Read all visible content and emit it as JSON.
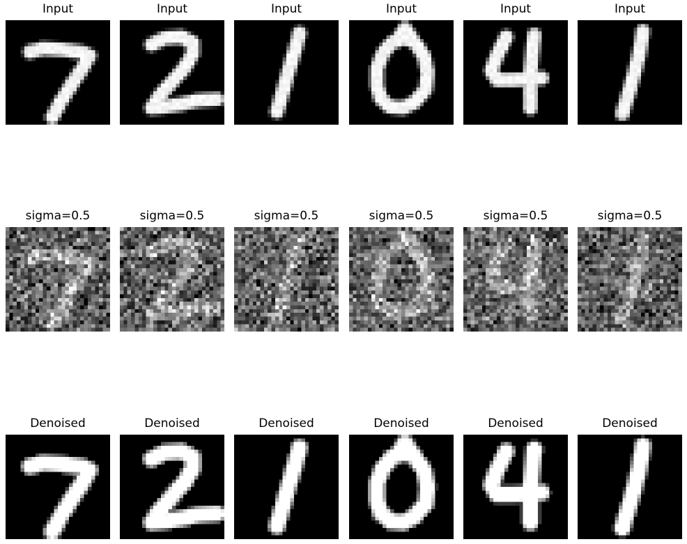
{
  "rows": [
    {
      "id": "input",
      "titles": [
        "Input",
        "Input",
        "Input",
        "Input",
        "Input",
        "Input"
      ]
    },
    {
      "id": "noisy",
      "titles": [
        "sigma=0.5",
        "sigma=0.5",
        "sigma=0.5",
        "sigma=0.5",
        "sigma=0.5",
        "sigma=0.5"
      ]
    },
    {
      "id": "denoised",
      "titles": [
        "Denoised",
        "Denoised",
        "Denoised",
        "Denoised",
        "Denoised",
        "Denoised"
      ]
    }
  ],
  "digits": [
    "7",
    "2",
    "1",
    "0",
    "4",
    "1"
  ],
  "colors": {
    "background": "#000000",
    "stroke": "#ffffff"
  }
}
